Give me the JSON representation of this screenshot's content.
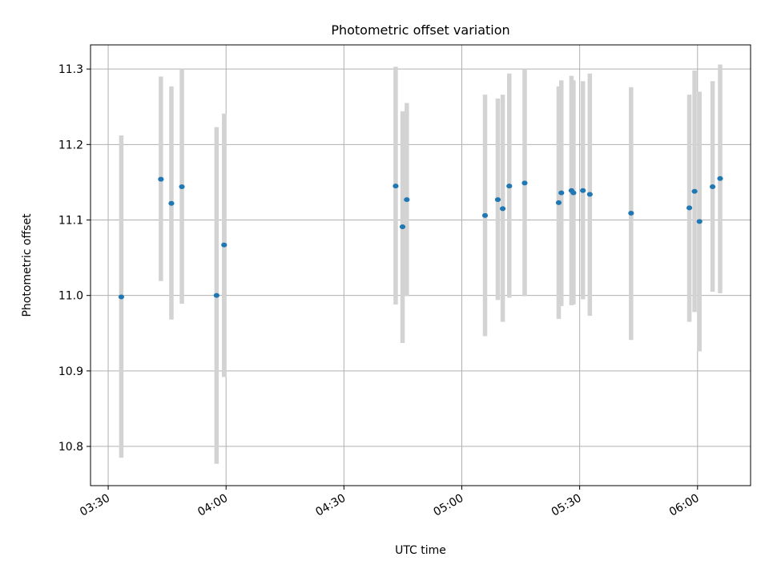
{
  "chart_data": {
    "type": "scatter",
    "title": "Photometric offset variation",
    "xlabel": "UTC time",
    "ylabel": "Photometric offset",
    "x_ticks": [
      "03:30",
      "04:00",
      "04:30",
      "05:00",
      "05:30",
      "06:00"
    ],
    "x_tick_minutes": [
      210,
      240,
      270,
      300,
      330,
      360
    ],
    "xlim_minutes": [
      205.5,
      373.5
    ],
    "ylim": [
      10.748,
      11.332
    ],
    "y_ticks": [
      "10.8",
      "10.9",
      "11.0",
      "11.1",
      "11.2",
      "11.3"
    ],
    "grid": true,
    "marker_color": "#1f77b4",
    "errorbar_color": "#d3d3d3",
    "points": [
      {
        "x": "03:33:20",
        "y": 10.998,
        "yerr_low": 10.785,
        "yerr_high": 11.212
      },
      {
        "x": "03:43:25",
        "y": 11.154,
        "yerr_low": 11.019,
        "yerr_high": 11.29
      },
      {
        "x": "03:46:05",
        "y": 11.122,
        "yerr_low": 10.968,
        "yerr_high": 11.277
      },
      {
        "x": "03:48:45",
        "y": 11.144,
        "yerr_low": 10.989,
        "yerr_high": 11.3
      },
      {
        "x": "03:57:35",
        "y": 11.0,
        "yerr_low": 10.777,
        "yerr_high": 11.223
      },
      {
        "x": "03:59:30",
        "y": 11.067,
        "yerr_low": 10.892,
        "yerr_high": 11.241
      },
      {
        "x": "04:43:10",
        "y": 11.145,
        "yerr_low": 10.988,
        "yerr_high": 11.303
      },
      {
        "x": "04:44:55",
        "y": 11.091,
        "yerr_low": 10.937,
        "yerr_high": 11.244
      },
      {
        "x": "04:46:00",
        "y": 11.127,
        "yerr_low": 10.999,
        "yerr_high": 11.255
      },
      {
        "x": "05:05:55",
        "y": 11.106,
        "yerr_low": 10.946,
        "yerr_high": 11.266
      },
      {
        "x": "05:09:10",
        "y": 11.127,
        "yerr_low": 10.994,
        "yerr_high": 11.261
      },
      {
        "x": "05:10:25",
        "y": 11.115,
        "yerr_low": 10.965,
        "yerr_high": 11.266
      },
      {
        "x": "05:12:05",
        "y": 11.145,
        "yerr_low": 10.997,
        "yerr_high": 11.294
      },
      {
        "x": "05:16:00",
        "y": 11.149,
        "yerr_low": 10.999,
        "yerr_high": 11.3
      },
      {
        "x": "05:24:40",
        "y": 11.123,
        "yerr_low": 10.969,
        "yerr_high": 11.277
      },
      {
        "x": "05:25:20",
        "y": 11.136,
        "yerr_low": 10.986,
        "yerr_high": 11.285
      },
      {
        "x": "05:27:55",
        "y": 11.139,
        "yerr_low": 10.987,
        "yerr_high": 11.291
      },
      {
        "x": "05:28:25",
        "y": 11.136,
        "yerr_low": 10.988,
        "yerr_high": 11.285
      },
      {
        "x": "05:30:50",
        "y": 11.139,
        "yerr_low": 10.995,
        "yerr_high": 11.284
      },
      {
        "x": "05:32:35",
        "y": 11.134,
        "yerr_low": 10.973,
        "yerr_high": 11.294
      },
      {
        "x": "05:43:05",
        "y": 11.109,
        "yerr_low": 10.941,
        "yerr_high": 11.276
      },
      {
        "x": "05:57:55",
        "y": 11.116,
        "yerr_low": 10.965,
        "yerr_high": 11.266
      },
      {
        "x": "05:59:15",
        "y": 11.138,
        "yerr_low": 10.978,
        "yerr_high": 11.298
      },
      {
        "x": "06:00:30",
        "y": 11.098,
        "yerr_low": 10.926,
        "yerr_high": 11.27
      },
      {
        "x": "06:03:50",
        "y": 11.144,
        "yerr_low": 11.005,
        "yerr_high": 11.284
      },
      {
        "x": "06:05:45",
        "y": 11.155,
        "yerr_low": 11.003,
        "yerr_high": 11.306
      }
    ]
  }
}
